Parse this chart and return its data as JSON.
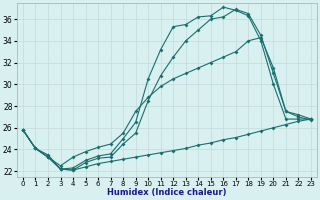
{
  "xlabel": "Humidex (Indice chaleur)",
  "bg_color": "#d8f0f0",
  "grid_color": "#c8dede",
  "line_color": "#1a6e6e",
  "xlim": [
    -0.5,
    23.5
  ],
  "ylim": [
    21.5,
    37.5
  ],
  "yticks": [
    22,
    24,
    26,
    28,
    30,
    32,
    34,
    36
  ],
  "xticks": [
    0,
    1,
    2,
    3,
    4,
    5,
    6,
    7,
    8,
    9,
    10,
    11,
    12,
    13,
    14,
    15,
    16,
    17,
    18,
    19,
    20,
    21,
    22,
    23
  ],
  "series1_x": [
    0,
    1,
    2,
    3,
    4,
    5,
    6,
    7,
    8,
    9,
    10,
    11,
    12,
    13,
    14,
    15,
    16,
    17,
    18,
    19,
    20,
    21,
    22,
    23
  ],
  "series1_y": [
    25.8,
    24.1,
    23.5,
    22.2,
    22.3,
    23.0,
    23.4,
    23.6,
    25.0,
    26.5,
    30.5,
    33.2,
    35.3,
    35.5,
    36.2,
    36.3,
    37.1,
    36.8,
    36.3,
    34.0,
    30.0,
    26.8,
    26.8,
    26.8
  ],
  "series2_x": [
    0,
    1,
    2,
    3,
    4,
    5,
    6,
    7,
    8,
    9,
    10,
    11,
    12,
    13,
    14,
    15,
    16,
    17,
    18,
    19,
    20,
    21,
    22,
    23
  ],
  "series2_y": [
    25.8,
    24.1,
    23.3,
    22.2,
    22.1,
    22.8,
    23.2,
    23.3,
    24.5,
    25.5,
    28.5,
    30.8,
    32.5,
    34.0,
    35.0,
    36.0,
    36.2,
    36.9,
    36.5,
    34.5,
    31.0,
    27.5,
    27.2,
    26.8
  ],
  "series3_x": [
    0,
    1,
    2,
    3,
    4,
    5,
    6,
    7,
    8,
    9,
    10,
    11,
    12,
    13,
    14,
    15,
    16,
    17,
    18,
    19,
    20,
    21,
    22,
    23
  ],
  "series3_y": [
    25.8,
    24.1,
    23.3,
    22.5,
    23.3,
    23.8,
    24.2,
    24.5,
    25.5,
    27.5,
    28.8,
    29.8,
    30.5,
    31.0,
    31.5,
    32.0,
    32.5,
    33.0,
    34.0,
    34.3,
    31.5,
    27.5,
    27.0,
    26.7
  ],
  "series4_x": [
    0,
    1,
    2,
    3,
    4,
    5,
    6,
    7,
    8,
    9,
    10,
    11,
    12,
    13,
    14,
    15,
    16,
    17,
    18,
    19,
    20,
    21,
    22,
    23
  ],
  "series4_y": [
    25.8,
    24.1,
    23.3,
    22.2,
    22.1,
    22.4,
    22.7,
    22.9,
    23.1,
    23.3,
    23.5,
    23.7,
    23.9,
    24.1,
    24.4,
    24.6,
    24.9,
    25.1,
    25.4,
    25.7,
    26.0,
    26.3,
    26.6,
    26.8
  ]
}
